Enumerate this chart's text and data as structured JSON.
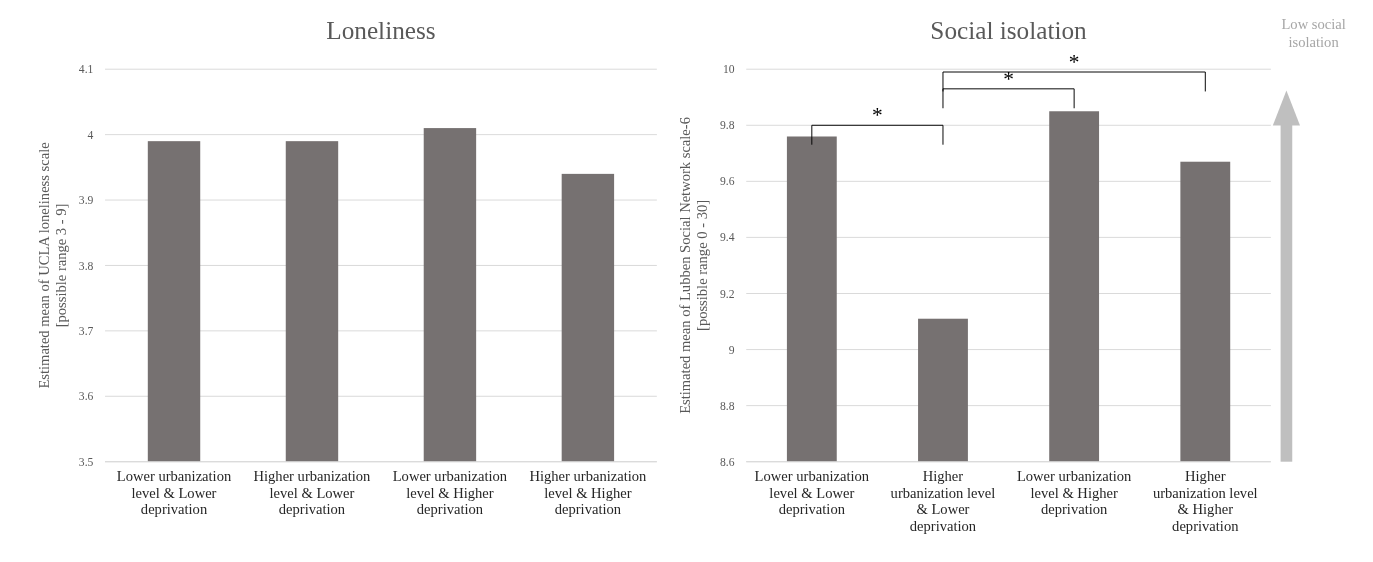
{
  "chart_data": [
    {
      "type": "bar",
      "title": "Loneliness",
      "ylabel": "Estimated mean of UCLA loneliness scale\n[possible range 3 - 9]",
      "categories": [
        "Lower urbanization level & Lower deprivation",
        "Higher urbanization level & Lower deprivation",
        "Lower urbanization level & Higher deprivation",
        "Higher urbanization level & Higher deprivation"
      ],
      "values": [
        3.99,
        3.99,
        4.01,
        3.94
      ],
      "color": "#767171",
      "ylim": [
        3.5,
        4.1
      ],
      "yticks": [
        3.5,
        3.6,
        3.7,
        3.8,
        3.9,
        4,
        4.1
      ],
      "grid": "y"
    },
    {
      "type": "bar",
      "title": "Social isolation",
      "ylabel": "Estimated mean of Lubben Social Network scale-6\n[possible range 0 - 30]",
      "categories": [
        "Lower urbanization level & Lower deprivation",
        "Higher urbanization level & Lower deprivation",
        "Lower urbanization level & Higher deprivation",
        "Higher urbanization level & Higher deprivation"
      ],
      "values": [
        9.76,
        9.11,
        9.85,
        9.67
      ],
      "color": "#767171",
      "ylim": [
        8.6,
        10
      ],
      "yticks": [
        8.6,
        8.8,
        9,
        9.2,
        9.4,
        9.6,
        9.8,
        10
      ],
      "grid": "y",
      "annotations": [
        "*",
        "*",
        "*",
        "Low social isolation"
      ]
    }
  ]
}
